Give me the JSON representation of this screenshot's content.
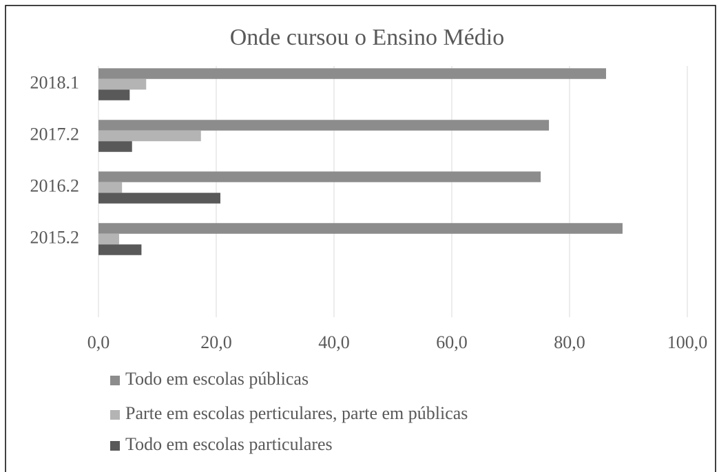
{
  "chart_data": {
    "type": "bar",
    "orientation": "horizontal",
    "title": "Onde cursou o Ensino Médio",
    "categories": [
      "2018.1",
      "2017.2",
      "2016.2",
      "2015.2",
      null
    ],
    "series": [
      {
        "name": "Todo em escolas públicas",
        "color": "#8c8c8c",
        "values": [
          86.2,
          76.5,
          75.1,
          89.0,
          null
        ]
      },
      {
        "name": "Parte em escolas perticulares, parte em públicas",
        "color": "#b4b4b4",
        "values": [
          8.1,
          17.4,
          4.0,
          3.5,
          null
        ]
      },
      {
        "name": "Todo em escolas particulares",
        "color": "#595959",
        "values": [
          5.3,
          5.7,
          20.7,
          7.3,
          null
        ]
      }
    ],
    "xlim": [
      0,
      100
    ],
    "xticks": [
      {
        "value": 0,
        "label": "0,0"
      },
      {
        "value": 20,
        "label": "20,0"
      },
      {
        "value": 40,
        "label": "40,0"
      },
      {
        "value": 60,
        "label": "60,0"
      },
      {
        "value": 80,
        "label": "80,0"
      },
      {
        "value": 100,
        "label": "100,0"
      }
    ],
    "grid": true,
    "legend": "bottom"
  }
}
